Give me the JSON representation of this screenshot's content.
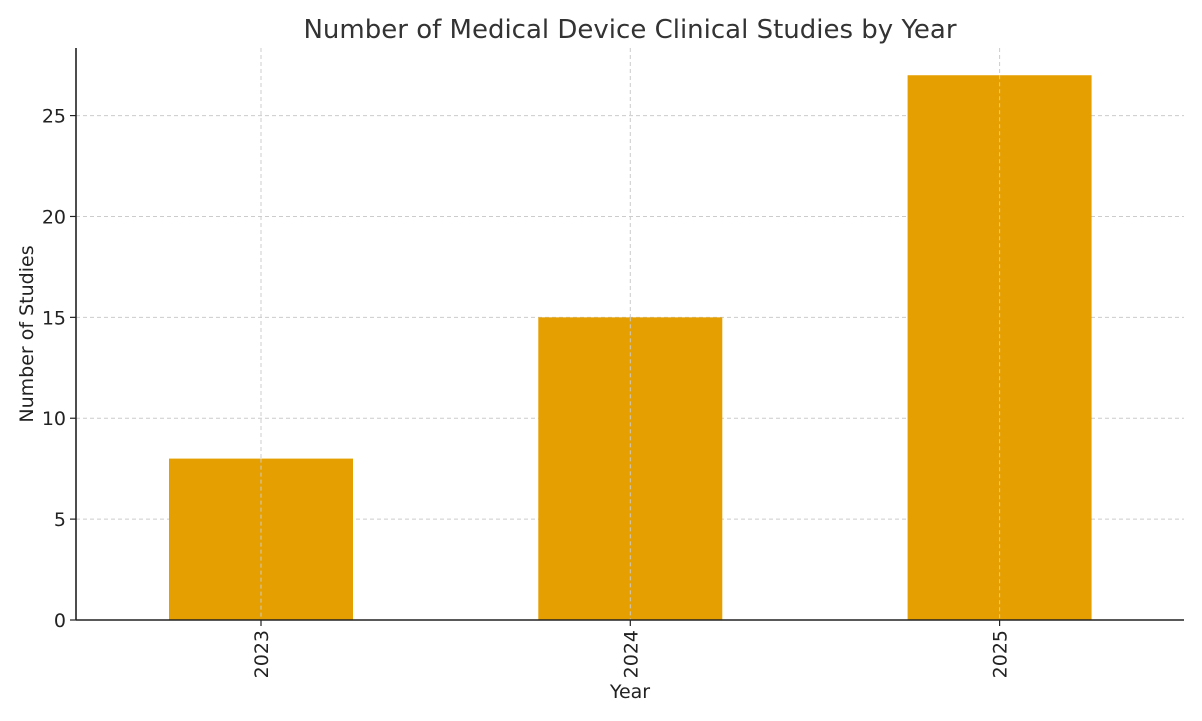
{
  "chart_data": {
    "type": "bar",
    "title": "Number of Medical Device Clinical Studies by Year",
    "xlabel": "Year",
    "ylabel": "Number of Studies",
    "categories": [
      "2023",
      "2024",
      "2025"
    ],
    "values": [
      8,
      15,
      27
    ],
    "ylim": [
      0,
      28.35
    ],
    "yticks": [
      0,
      5,
      10,
      15,
      20,
      25
    ],
    "bar_color": "#E69F00",
    "grid": true,
    "x_tick_rotation": "vertical"
  }
}
